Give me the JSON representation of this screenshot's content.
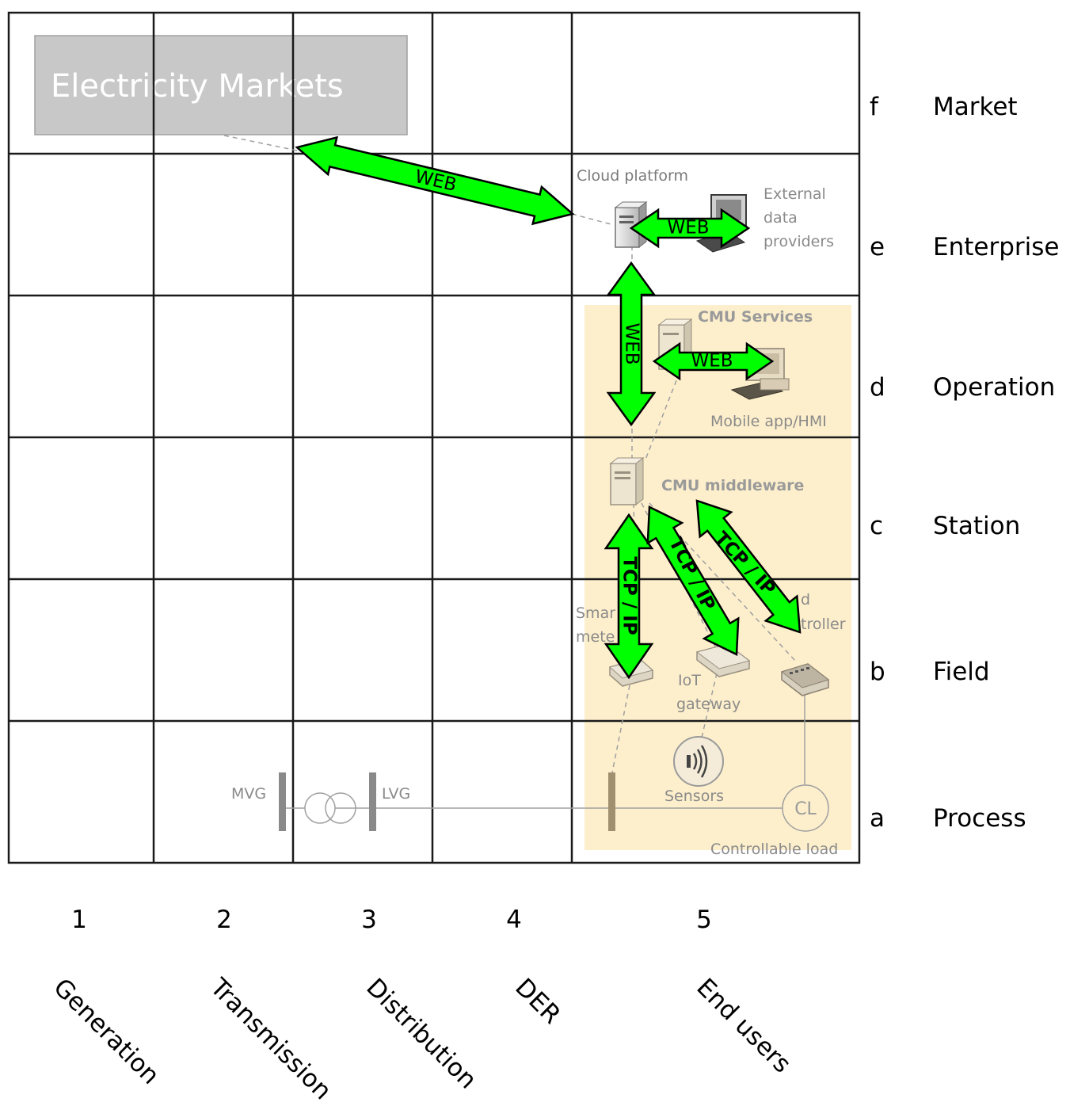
{
  "columns": [
    {
      "index": "1",
      "name": "Generation"
    },
    {
      "index": "2",
      "name": "Transmission"
    },
    {
      "index": "3",
      "name": "Distribution"
    },
    {
      "index": "4",
      "name": "DER"
    },
    {
      "index": "5",
      "name": "End users"
    }
  ],
  "zones": [
    {
      "letter": "f",
      "name": "Market"
    },
    {
      "letter": "e",
      "name": "Enterprise"
    },
    {
      "letter": "d",
      "name": "Operation"
    },
    {
      "letter": "c",
      "name": "Station"
    },
    {
      "letter": "b",
      "name": "Field"
    },
    {
      "letter": "a",
      "name": "Process"
    }
  ],
  "markets_label": "Electricity Markets",
  "components": {
    "cloud_platform": "Cloud platform",
    "external_line1": "External",
    "external_line2": "data",
    "external_line3": "providers",
    "cmu_services": "CMU Services",
    "mobile_app": "Mobile app/HMI",
    "cmu_middleware": "CMU middleware",
    "smart_line1": "Smar",
    "smart_line2": "mete",
    "load_line1": "d",
    "load_line2": "troller",
    "iot_line1": "IoT",
    "iot_line2": "gateway",
    "sensors": "Sensors",
    "controllable_load": "Controllable load",
    "cl": "CL",
    "mvg": "MVG",
    "lvg": "LVG"
  },
  "links": {
    "web_market": "WEB",
    "web_external": "WEB",
    "web_vertical": "WEB",
    "web_hmi": "WEB",
    "tcp_meter": "TCP / IP",
    "tcp_gateway": "TCP / IP",
    "tcp_controller": "TCP / IP"
  },
  "colors": {
    "arrow_fill": "#00ff00",
    "customer_area": "#fdefcc",
    "markets_box": "#c8c8c8"
  }
}
